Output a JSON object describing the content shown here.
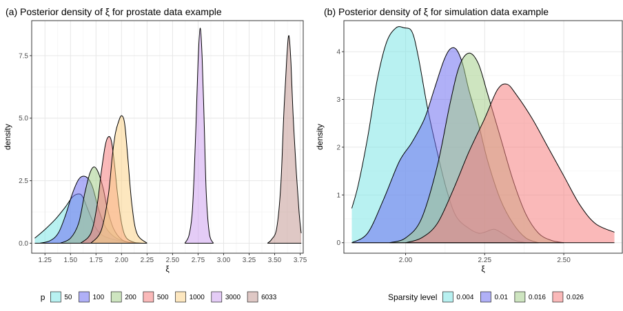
{
  "chart_data": [
    {
      "type": "area",
      "title": "(a) Posterior density of  ξ  for prostate data example",
      "xlabel": "ξ",
      "ylabel": "density",
      "xlim": [
        1.12,
        3.78
      ],
      "ylim": [
        -0.4,
        8.9
      ],
      "x_ticks": [
        "1.25",
        "1.50",
        "1.75",
        "2.00",
        "2.25",
        "2.50",
        "2.75",
        "3.00",
        "3.25",
        "3.50",
        "3.75"
      ],
      "y_ticks": [
        "0.0",
        "2.5",
        "5.0",
        "7.5"
      ],
      "grid": true,
      "legend_title": "p",
      "legend_position": "bottom",
      "series": [
        {
          "name": "50",
          "color": "#7ee5e5",
          "x": [
            1.15,
            1.25,
            1.35,
            1.45,
            1.52,
            1.58,
            1.62,
            1.68,
            1.75,
            1.82,
            1.92,
            2.05,
            2.2
          ],
          "y": [
            0.2,
            0.55,
            0.95,
            1.45,
            1.85,
            1.97,
            1.85,
            1.25,
            0.6,
            0.3,
            0.15,
            0.05,
            0.0
          ]
        },
        {
          "name": "100",
          "color": "#6f6ff0",
          "x": [
            1.2,
            1.3,
            1.38,
            1.45,
            1.52,
            1.58,
            1.63,
            1.68,
            1.72,
            1.78,
            1.85,
            1.95,
            2.1
          ],
          "y": [
            0.0,
            0.1,
            0.4,
            1.1,
            2.0,
            2.55,
            2.68,
            2.55,
            2.2,
            1.3,
            0.6,
            0.2,
            0.0
          ]
        },
        {
          "name": "200",
          "color": "#a6d08c",
          "x": [
            1.4,
            1.5,
            1.58,
            1.64,
            1.69,
            1.73,
            1.77,
            1.82,
            1.86,
            1.92,
            2.0,
            2.1
          ],
          "y": [
            0.0,
            0.2,
            0.8,
            2.0,
            2.8,
            3.05,
            2.85,
            2.2,
            1.4,
            0.6,
            0.15,
            0.0
          ]
        },
        {
          "name": "500",
          "color": "#f58080",
          "x": [
            1.6,
            1.7,
            1.76,
            1.8,
            1.84,
            1.87,
            1.9,
            1.93,
            1.96,
            2.0,
            2.05,
            2.15
          ],
          "y": [
            0.0,
            0.4,
            1.5,
            2.8,
            3.9,
            4.25,
            4.1,
            3.2,
            2.0,
            0.8,
            0.2,
            0.0
          ]
        },
        {
          "name": "1000",
          "color": "#fbd38a",
          "x": [
            1.7,
            1.8,
            1.87,
            1.91,
            1.94,
            1.97,
            2.0,
            2.03,
            2.06,
            2.1,
            2.15,
            2.25
          ],
          "y": [
            0.0,
            0.5,
            1.9,
            3.5,
            4.4,
            4.85,
            5.1,
            4.8,
            3.5,
            1.6,
            0.4,
            0.0
          ]
        },
        {
          "name": "3000",
          "color": "#cda2ee",
          "x": [
            2.62,
            2.66,
            2.69,
            2.71,
            2.73,
            2.75,
            2.77,
            2.79,
            2.81,
            2.83,
            2.86,
            2.9
          ],
          "y": [
            0.0,
            0.3,
            1.1,
            2.6,
            4.8,
            7.3,
            8.6,
            7.4,
            4.8,
            2.0,
            0.4,
            0.0
          ]
        },
        {
          "name": "6033",
          "color": "#c49a96",
          "x": [
            3.43,
            3.47,
            3.52,
            3.56,
            3.59,
            3.62,
            3.64,
            3.66,
            3.68,
            3.71,
            3.74,
            3.76
          ],
          "y": [
            0.0,
            0.15,
            0.6,
            2.3,
            5.2,
            7.5,
            8.3,
            7.2,
            5.2,
            3.0,
            1.2,
            0.4
          ]
        }
      ]
    },
    {
      "type": "area",
      "title": "(b) Posterior density of  ξ  for simulation data example",
      "xlabel": "ξ",
      "ylabel": "density",
      "xlim": [
        1.805,
        2.685
      ],
      "ylim": [
        -0.22,
        4.65
      ],
      "x_ticks": [
        "2.00",
        "2.25",
        "2.50"
      ],
      "x_tick_values": [
        2.0,
        2.25,
        2.5
      ],
      "y_ticks": [
        "0",
        "1",
        "2",
        "3",
        "4"
      ],
      "grid": true,
      "legend_title": "Sparsity level",
      "legend_position": "bottom",
      "series": [
        {
          "name": "0.004",
          "color": "#7ee5e5",
          "x": [
            1.83,
            1.85,
            1.88,
            1.91,
            1.94,
            1.97,
            1.995,
            2.02,
            2.04,
            2.07,
            2.1,
            2.13,
            2.16,
            2.2,
            2.23,
            2.25,
            2.28,
            2.31,
            2.34,
            2.38
          ],
          "y": [
            0.72,
            1.2,
            2.2,
            3.4,
            4.2,
            4.5,
            4.5,
            4.42,
            3.9,
            2.8,
            1.9,
            1.1,
            0.55,
            0.3,
            0.2,
            0.22,
            0.28,
            0.18,
            0.06,
            0.0
          ]
        },
        {
          "name": "0.01",
          "color": "#6f6ff0",
          "x": [
            1.83,
            1.88,
            1.93,
            1.98,
            2.02,
            2.06,
            2.09,
            2.12,
            2.14,
            2.16,
            2.18,
            2.2,
            2.23,
            2.26,
            2.3,
            2.34,
            2.38,
            2.42
          ],
          "y": [
            0.0,
            0.2,
            0.9,
            1.7,
            2.1,
            2.6,
            3.2,
            3.8,
            4.05,
            4.05,
            3.75,
            3.2,
            2.5,
            1.7,
            0.9,
            0.4,
            0.1,
            0.0
          ]
        },
        {
          "name": "0.016",
          "color": "#a6d08c",
          "x": [
            1.95,
            2.0,
            2.05,
            2.1,
            2.14,
            2.17,
            2.2,
            2.23,
            2.26,
            2.3,
            2.34,
            2.38,
            2.42,
            2.46,
            2.5
          ],
          "y": [
            0.0,
            0.1,
            0.5,
            1.6,
            2.9,
            3.7,
            3.97,
            3.75,
            3.1,
            2.2,
            1.3,
            0.6,
            0.2,
            0.05,
            0.0
          ]
        },
        {
          "name": "0.026",
          "color": "#f58080",
          "x": [
            2.0,
            2.05,
            2.1,
            2.15,
            2.2,
            2.25,
            2.29,
            2.32,
            2.35,
            2.4,
            2.45,
            2.5,
            2.55,
            2.6,
            2.66
          ],
          "y": [
            0.0,
            0.1,
            0.4,
            1.1,
            1.9,
            2.6,
            3.2,
            3.32,
            3.1,
            2.6,
            2.0,
            1.4,
            0.8,
            0.4,
            0.22
          ]
        }
      ]
    }
  ]
}
